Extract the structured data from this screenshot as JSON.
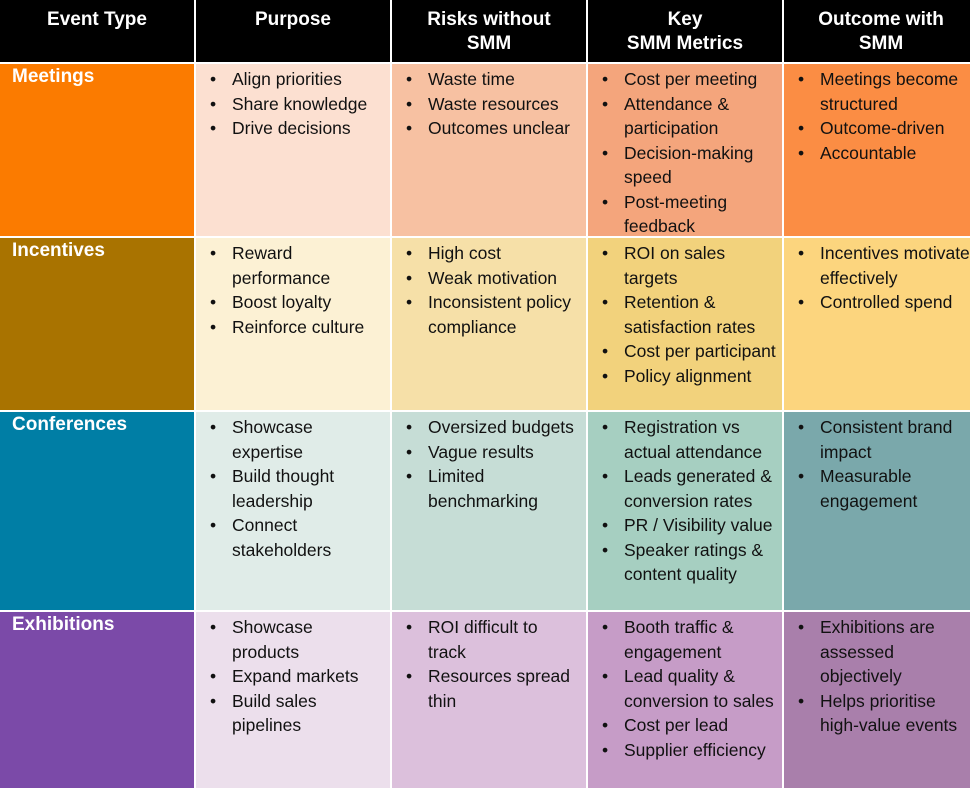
{
  "headers": {
    "event_type": "Event Type",
    "purpose": "Purpose",
    "risks": {
      "line1": "Risks without",
      "line2": "SMM"
    },
    "metrics": {
      "line1": "Key",
      "line2": "SMM Metrics"
    },
    "outcome": {
      "line1": "Outcome with",
      "line2": "SMM"
    }
  },
  "colors": {
    "header_bg": "#000000",
    "meetings": [
      "#fb7b00",
      "#fce0d1",
      "#f7c1a2",
      "#f4a57c",
      "#fb8d44"
    ],
    "incentives": [
      "#a97300",
      "#fcf1d4",
      "#f6e0a8",
      "#f2d27c",
      "#fcd57e"
    ],
    "conferences": [
      "#007ea5",
      "#e0ece8",
      "#c6ddd6",
      "#a6cfc1",
      "#7aa8ab"
    ],
    "exhibitions": [
      "#7b4aa8",
      "#ecdfec",
      "#dcc0dc",
      "#c69cc7",
      "#a97fab"
    ]
  },
  "rows": [
    {
      "event": "Meetings",
      "purpose": [
        "Align priorities",
        "Share knowledge",
        "Drive decisions"
      ],
      "risks": [
        "Waste time",
        "Waste resources",
        "Outcomes unclear"
      ],
      "metrics": [
        "Cost per meeting",
        "Attendance & participation",
        "Decision-making speed",
        "Post-meeting feedback"
      ],
      "outcome": [
        "Meetings become structured",
        "Outcome-driven",
        "Accountable"
      ]
    },
    {
      "event": "Incentives",
      "purpose": [
        "Reward performance",
        "Boost loyalty",
        "Reinforce culture"
      ],
      "risks": [
        "High cost",
        "Weak motivation",
        "Inconsistent policy compliance"
      ],
      "metrics": [
        "ROI on sales targets",
        "Retention & satisfaction rates",
        "Cost per participant",
        "Policy alignment"
      ],
      "outcome": [
        "Incentives motivate effectively",
        "Controlled spend"
      ]
    },
    {
      "event": "Conferences",
      "purpose": [
        "Showcase expertise",
        "Build thought leadership",
        "Connect stakeholders"
      ],
      "risks": [
        "Oversized budgets",
        "Vague results",
        "Limited benchmarking"
      ],
      "metrics": [
        "Registration vs actual attendance",
        "Leads generated & conversion rates",
        "PR / Visibility value",
        "Speaker ratings & content quality"
      ],
      "outcome": [
        "Consistent brand impact",
        "Measurable engagement"
      ]
    },
    {
      "event": "Exhibitions",
      "purpose": [
        "Showcase products",
        "Expand markets",
        "Build sales pipelines"
      ],
      "risks": [
        "ROI difficult to track",
        "Resources spread thin"
      ],
      "metrics": [
        "Booth traffic & engagement",
        "Lead quality & conversion to sales",
        "Cost per lead",
        "Supplier efficiency"
      ],
      "outcome": [
        "Exhibitions are assessed objectively",
        "Helps prioritise high-value events"
      ]
    }
  ]
}
